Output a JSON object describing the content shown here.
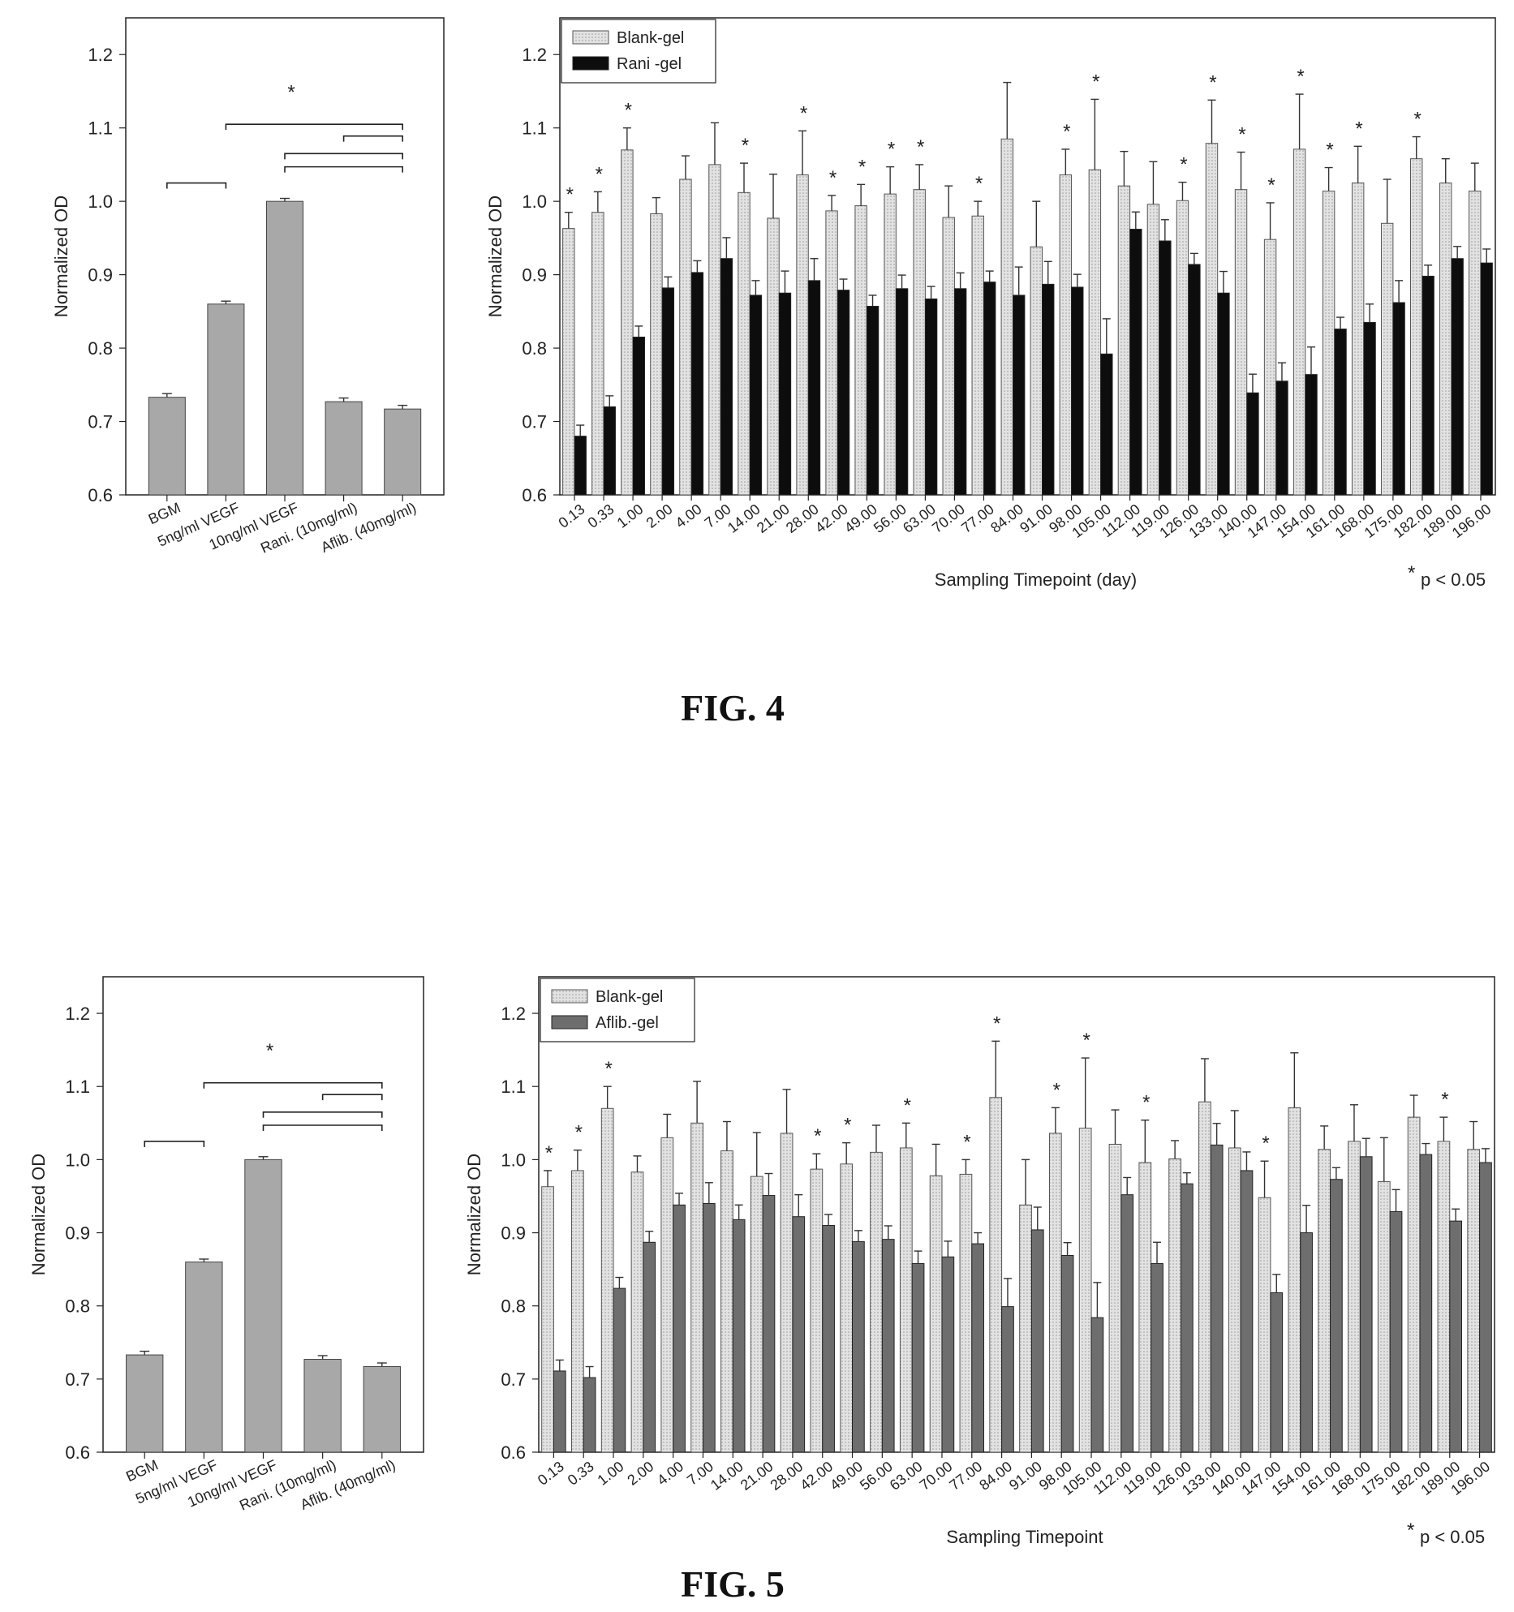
{
  "figures": [
    {
      "label": "FIG. 4",
      "pvalue_note": "p < 0.05",
      "pvalue_star": "*"
    },
    {
      "label": "FIG. 5",
      "pvalue_note": "p < 0.05",
      "pvalue_star": "*"
    }
  ],
  "colors": {
    "gray_bar": "#a8a8a8",
    "blank_gel": "#e2e2e2",
    "rani_gel": "#0d0d0d",
    "aflib_gel": "#6e6e6e",
    "axis": "#222222"
  },
  "chart_data": [
    {
      "type": "bar",
      "figure": "FIG. 4",
      "title": "",
      "xlabel": "",
      "ylabel": "Normalized OD",
      "ylim": [
        0.6,
        1.25
      ],
      "yticks": [
        "0.6",
        "0.7",
        "0.8",
        "0.9",
        "1.0",
        "1.1",
        "1.2"
      ],
      "categories": [
        "BGM",
        "5ng/ml VEGF",
        "10ng/ml VEGF",
        "Rani. (10mg/ml)",
        "Aflib. (40mg/ml)"
      ],
      "values": [
        0.733,
        0.86,
        1.0,
        0.727,
        0.717
      ],
      "errors": [
        0.005,
        0.004,
        0.004,
        0.005,
        0.005
      ],
      "significance": "*",
      "grid": false
    },
    {
      "type": "bar",
      "figure": "FIG. 4",
      "title": "",
      "xlabel": "Sampling Timepoint (day)",
      "ylabel": "Normalized OD",
      "ylim": [
        0.6,
        1.25
      ],
      "yticks": [
        "0.6",
        "0.7",
        "0.8",
        "0.9",
        "1.0",
        "1.1",
        "1.2"
      ],
      "legend_position": "top-left",
      "categories": [
        "0.13",
        "0.33",
        "1.00",
        "2.00",
        "4.00",
        "7.00",
        "14.00",
        "21.00",
        "28.00",
        "42.00",
        "49.00",
        "56.00",
        "63.00",
        "70.00",
        "77.00",
        "84.00",
        "91.00",
        "98.00",
        "105.00",
        "112.00",
        "119.00",
        "126.00",
        "133.00",
        "140.00",
        "147.00",
        "154.00",
        "161.00",
        "168.00",
        "175.00",
        "182.00",
        "189.00",
        "196.00"
      ],
      "series": [
        {
          "name": "Blank-gel",
          "values": [
            0.963,
            0.985,
            1.07,
            0.983,
            1.03,
            1.05,
            1.012,
            0.977,
            1.036,
            0.987,
            0.994,
            1.01,
            1.016,
            0.978,
            0.98,
            1.085,
            0.938,
            1.036,
            1.043,
            1.021,
            0.996,
            1.001,
            1.079,
            1.016,
            0.948,
            1.071,
            1.014,
            1.025,
            0.97,
            1.058,
            1.025,
            1.014
          ],
          "errors": [
            0.022,
            0.028,
            0.03,
            0.022,
            0.032,
            0.057,
            0.04,
            0.06,
            0.06,
            0.021,
            0.029,
            0.037,
            0.034,
            0.043,
            0.02,
            0.077,
            0.062,
            0.035,
            0.096,
            0.047,
            0.058,
            0.025,
            0.059,
            0.051,
            0.05,
            0.075,
            0.032,
            0.05,
            0.06,
            0.03,
            0.033,
            0.038
          ]
        },
        {
          "name": "Rani -gel",
          "values": [
            0.68,
            0.72,
            0.815,
            0.882,
            0.903,
            0.922,
            0.872,
            0.875,
            0.892,
            0.879,
            0.857,
            0.881,
            0.867,
            0.881,
            0.89,
            0.872,
            0.887,
            0.883,
            0.792,
            0.962,
            0.946,
            0.914,
            0.875,
            0.739,
            0.755,
            0.764,
            0.826,
            0.835,
            0.862,
            0.898,
            0.922,
            0.916
          ]
        }
      ],
      "significance_markers": [
        "0.13",
        "0.33",
        "1.00",
        "14.00",
        "28.00",
        "42.00",
        "49.00",
        "56.00",
        "63.00",
        "77.00",
        "98.00",
        "105.00",
        "126.00",
        "133.00",
        "140.00",
        "147.00",
        "154.00",
        "161.00",
        "168.00",
        "182.00"
      ],
      "grid": false
    },
    {
      "type": "bar",
      "figure": "FIG. 5",
      "title": "",
      "xlabel": "",
      "ylabel": "Normalized OD",
      "ylim": [
        0.6,
        1.25
      ],
      "yticks": [
        "0.6",
        "0.7",
        "0.8",
        "0.9",
        "1.0",
        "1.1",
        "1.2"
      ],
      "categories": [
        "BGM",
        "5ng/ml VEGF",
        "10ng/ml VEGF",
        "Rani. (10mg/ml)",
        "Aflib. (40mg/ml)"
      ],
      "values": [
        0.733,
        0.86,
        1.0,
        0.727,
        0.717
      ],
      "errors": [
        0.005,
        0.004,
        0.004,
        0.005,
        0.005
      ],
      "significance": "*",
      "grid": false
    },
    {
      "type": "bar",
      "figure": "FIG. 5",
      "title": "",
      "xlabel": "Sampling Timepoint",
      "ylabel": "Normalized OD",
      "ylim": [
        0.6,
        1.25
      ],
      "yticks": [
        "0.6",
        "0.7",
        "0.8",
        "0.9",
        "1.0",
        "1.1",
        "1.2"
      ],
      "legend_position": "top-left",
      "categories": [
        "0.13",
        "0.33",
        "1.00",
        "2.00",
        "4.00",
        "7.00",
        "14.00",
        "21.00",
        "28.00",
        "42.00",
        "49.00",
        "56.00",
        "63.00",
        "70.00",
        "77.00",
        "84.00",
        "91.00",
        "98.00",
        "105.00",
        "112.00",
        "119.00",
        "126.00",
        "133.00",
        "140.00",
        "147.00",
        "154.00",
        "161.00",
        "168.00",
        "175.00",
        "182.00",
        "189.00",
        "196.00"
      ],
      "series": [
        {
          "name": "Blank-gel",
          "values": [
            0.963,
            0.985,
            1.07,
            0.983,
            1.03,
            1.05,
            1.012,
            0.977,
            1.036,
            0.987,
            0.994,
            1.01,
            1.016,
            0.978,
            0.98,
            1.085,
            0.938,
            1.036,
            1.043,
            1.021,
            0.996,
            1.001,
            1.079,
            1.016,
            0.948,
            1.071,
            1.014,
            1.025,
            0.97,
            1.058,
            1.025,
            1.014
          ],
          "errors": [
            0.022,
            0.028,
            0.03,
            0.022,
            0.032,
            0.057,
            0.04,
            0.06,
            0.06,
            0.021,
            0.029,
            0.037,
            0.034,
            0.043,
            0.02,
            0.077,
            0.062,
            0.035,
            0.096,
            0.047,
            0.058,
            0.025,
            0.059,
            0.051,
            0.05,
            0.075,
            0.032,
            0.05,
            0.06,
            0.03,
            0.033,
            0.038
          ]
        },
        {
          "name": "Aflib.-gel",
          "values": [
            0.711,
            0.702,
            0.824,
            0.887,
            0.938,
            0.94,
            0.918,
            0.951,
            0.922,
            0.91,
            0.888,
            0.891,
            0.858,
            0.867,
            0.885,
            0.799,
            0.904,
            0.869,
            0.784,
            0.952,
            0.858,
            0.967,
            1.02,
            0.985,
            0.818,
            0.9,
            0.973,
            1.004,
            0.929,
            1.007,
            0.916,
            0.996
          ]
        }
      ],
      "significance_markers": [
        "0.13",
        "0.33",
        "1.00",
        "42.00",
        "49.00",
        "63.00",
        "77.00",
        "84.00",
        "98.00",
        "105.00",
        "119.00",
        "147.00",
        "189.00"
      ],
      "grid": false
    }
  ]
}
